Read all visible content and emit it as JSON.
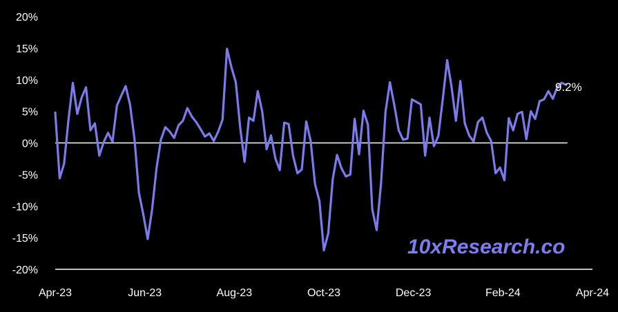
{
  "chart_data": {
    "type": "line",
    "title": "",
    "xlabel": "",
    "ylabel": "",
    "ylim": [
      -20,
      20
    ],
    "y_ticks": [
      "20%",
      "15%",
      "10%",
      "5%",
      "0%",
      "-5%",
      "-10%",
      "-15%",
      "-20%"
    ],
    "x_ticks": [
      "Apr-23",
      "Jun-23",
      "Aug-23",
      "Oct-23",
      "Dec-23",
      "Feb-24",
      "Apr-24"
    ],
    "zero_line": true,
    "grid": false,
    "end_label": "9.2%",
    "watermark": "10xResearch.co",
    "colors": {
      "line": "#7b7beb",
      "background": "#000000",
      "text": "#ffffff",
      "zero_line": "#ffffff"
    },
    "series": [
      {
        "x": [
          "2023-04-01",
          "2023-04-04",
          "2023-04-07",
          "2023-04-10",
          "2023-04-13",
          "2023-04-16",
          "2023-04-19",
          "2023-04-22",
          "2023-04-25",
          "2023-04-28",
          "2023-05-01",
          "2023-05-04",
          "2023-05-07",
          "2023-05-10",
          "2023-05-13",
          "2023-05-16",
          "2023-05-19",
          "2023-05-22",
          "2023-05-25",
          "2023-05-28",
          "2023-05-31",
          "2023-06-03",
          "2023-06-06",
          "2023-06-09",
          "2023-06-12",
          "2023-06-15",
          "2023-06-18",
          "2023-06-21",
          "2023-06-24",
          "2023-06-27",
          "2023-06-30",
          "2023-07-03",
          "2023-07-06",
          "2023-07-09",
          "2023-07-12",
          "2023-07-15",
          "2023-07-18",
          "2023-07-21",
          "2023-07-24",
          "2023-07-27",
          "2023-07-30",
          "2023-08-02",
          "2023-08-05",
          "2023-08-08",
          "2023-08-11",
          "2023-08-14",
          "2023-08-17",
          "2023-08-20",
          "2023-08-23",
          "2023-08-26",
          "2023-08-29",
          "2023-09-01",
          "2023-09-04",
          "2023-09-07",
          "2023-09-10",
          "2023-09-13",
          "2023-09-16",
          "2023-09-19",
          "2023-09-22",
          "2023-09-25",
          "2023-09-28",
          "2023-10-01",
          "2023-10-04",
          "2023-10-07",
          "2023-10-10",
          "2023-10-13",
          "2023-10-16",
          "2023-10-19",
          "2023-10-22",
          "2023-10-25",
          "2023-10-28",
          "2023-10-31",
          "2023-11-03",
          "2023-11-06",
          "2023-11-09",
          "2023-11-12",
          "2023-11-15",
          "2023-11-18",
          "2023-11-21",
          "2023-11-24",
          "2023-11-27",
          "2023-11-30",
          "2023-12-03",
          "2023-12-06",
          "2023-12-09",
          "2023-12-12",
          "2023-12-15",
          "2023-12-18",
          "2023-12-21",
          "2023-12-24",
          "2023-12-27",
          "2023-12-30",
          "2024-01-02",
          "2024-01-05",
          "2024-01-08",
          "2024-01-11",
          "2024-01-14",
          "2024-01-17",
          "2024-01-20",
          "2024-01-23",
          "2024-01-26",
          "2024-01-29",
          "2024-02-01",
          "2024-02-04",
          "2024-02-07",
          "2024-02-10",
          "2024-02-13",
          "2024-02-16",
          "2024-02-19",
          "2024-02-22",
          "2024-02-25",
          "2024-02-28",
          "2024-03-02",
          "2024-03-05",
          "2024-03-08",
          "2024-03-11",
          "2024-03-14"
        ],
        "values": [
          4.8,
          -5.6,
          -3.3,
          3.6,
          9.5,
          4.6,
          7.2,
          8.8,
          2.0,
          3.1,
          -2.0,
          0.1,
          1.6,
          0.2,
          5.9,
          7.5,
          9.0,
          6.0,
          0.6,
          -7.9,
          -11.3,
          -15.2,
          -10.5,
          -4.0,
          0.5,
          2.5,
          1.8,
          0.8,
          2.8,
          3.5,
          5.5,
          4.2,
          3.3,
          2.2,
          1.0,
          1.5,
          0.3,
          1.8,
          3.7,
          14.9,
          12.0,
          9.6,
          2.5,
          -3.0,
          4.0,
          3.5,
          8.2,
          5.0,
          -1.0,
          1.2,
          -2.5,
          -4.3,
          3.2,
          3.0,
          -2.0,
          -4.8,
          -4.2,
          3.4,
          0.3,
          -6.5,
          -9.2,
          -17.0,
          -14.3,
          -5.8,
          -1.9,
          -4.0,
          -5.3,
          -5.0,
          3.8,
          -1.8,
          5.1,
          2.9,
          -10.5,
          -13.8,
          -6.3,
          4.9,
          9.6,
          6.0,
          2.0,
          0.5,
          0.7,
          6.9,
          6.5,
          6.1,
          -2.0,
          4.0,
          -0.5,
          1.1,
          6.9,
          13.1,
          8.9,
          3.5,
          9.8,
          3.1,
          1.2,
          0.2,
          3.3,
          4.0,
          1.6,
          0.3,
          -4.8,
          -3.9,
          -5.9,
          3.9,
          2.0,
          4.6,
          4.9,
          0.6,
          5.0,
          3.8,
          6.6,
          6.9,
          8.2,
          7.0,
          8.8,
          9.5,
          9.2
        ]
      }
    ]
  }
}
